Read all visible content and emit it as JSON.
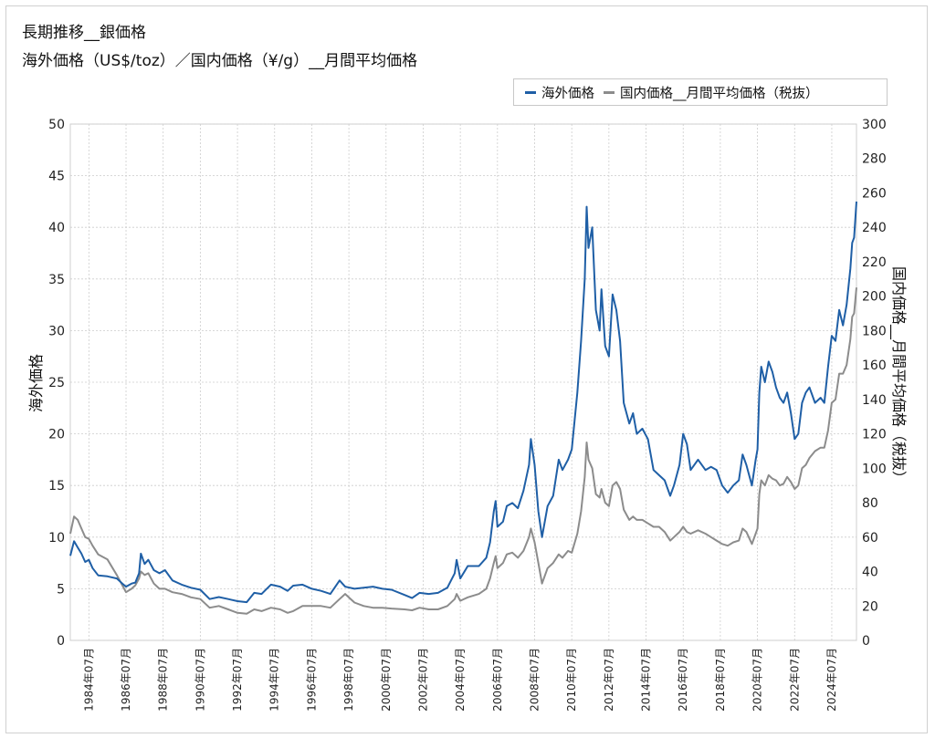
{
  "title_line1": "長期推移__銀価格",
  "title_line2": "海外価格（US$/toz）／国内価格（¥/g）__月間平均価格",
  "chart_data": {
    "type": "line",
    "title": "長期推移__銀価格",
    "subtitle": "海外価格（US$/toz）／国内価格（¥/g）__月間平均価格",
    "ylabel": "海外価格",
    "y2label": "国内価格__月間平均価格（税抜）",
    "ylim": [
      0,
      50
    ],
    "y2lim": [
      0,
      300
    ],
    "yticks": [
      "0",
      "5",
      "10",
      "15",
      "20",
      "25",
      "30",
      "35",
      "40",
      "45",
      "50"
    ],
    "y2ticks": [
      "0",
      "20",
      "40",
      "60",
      "80",
      "100",
      "120",
      "140",
      "160",
      "180",
      "200",
      "220",
      "240",
      "260",
      "280",
      "300"
    ],
    "x_range": [
      1983.5,
      2025.83
    ],
    "xtick_labels": [
      "1984年07月",
      "1986年07月",
      "1988年07月",
      "1990年07月",
      "1992年07月",
      "1994年07月",
      "1996年07月",
      "1998年07月",
      "2000年07月",
      "2002年07月",
      "2004年07月",
      "2006年07月",
      "2008年07月",
      "2010年07月",
      "2012年07月",
      "2014年07月",
      "2016年07月",
      "2018年07月",
      "2020年07月",
      "2022年07月",
      "2024年07月"
    ],
    "xtick_values": [
      1984.5,
      1986.5,
      1988.5,
      1990.5,
      1992.5,
      1994.5,
      1996.5,
      1998.5,
      2000.5,
      2002.5,
      2004.5,
      2006.5,
      2008.5,
      2010.5,
      2012.5,
      2014.5,
      2016.5,
      2018.5,
      2020.5,
      2022.5,
      2024.5
    ],
    "grid": true,
    "legend_position": "top-right",
    "series": [
      {
        "name": "海外価格",
        "axis": "left",
        "color": "#1f5fa6",
        "points": [
          [
            1983.5,
            8.2
          ],
          [
            1983.7,
            9.6
          ],
          [
            1983.9,
            9.0
          ],
          [
            1984.1,
            8.4
          ],
          [
            1984.3,
            7.6
          ],
          [
            1984.5,
            7.8
          ],
          [
            1984.7,
            7.0
          ],
          [
            1985.0,
            6.3
          ],
          [
            1985.5,
            6.2
          ],
          [
            1986.0,
            6.0
          ],
          [
            1986.3,
            5.5
          ],
          [
            1986.5,
            5.2
          ],
          [
            1986.8,
            5.5
          ],
          [
            1987.0,
            5.6
          ],
          [
            1987.2,
            6.5
          ],
          [
            1987.3,
            8.4
          ],
          [
            1987.5,
            7.4
          ],
          [
            1987.7,
            7.8
          ],
          [
            1988.0,
            6.8
          ],
          [
            1988.3,
            6.5
          ],
          [
            1988.6,
            6.8
          ],
          [
            1989.0,
            5.8
          ],
          [
            1989.5,
            5.4
          ],
          [
            1990.0,
            5.1
          ],
          [
            1990.5,
            4.9
          ],
          [
            1991.0,
            4.0
          ],
          [
            1991.5,
            4.2
          ],
          [
            1992.0,
            4.0
          ],
          [
            1992.5,
            3.8
          ],
          [
            1993.0,
            3.7
          ],
          [
            1993.4,
            4.6
          ],
          [
            1993.8,
            4.5
          ],
          [
            1994.3,
            5.4
          ],
          [
            1994.8,
            5.2
          ],
          [
            1995.2,
            4.8
          ],
          [
            1995.5,
            5.3
          ],
          [
            1996.0,
            5.4
          ],
          [
            1996.5,
            5.0
          ],
          [
            1997.0,
            4.8
          ],
          [
            1997.5,
            4.5
          ],
          [
            1998.0,
            5.8
          ],
          [
            1998.3,
            5.2
          ],
          [
            1998.8,
            5.0
          ],
          [
            1999.3,
            5.1
          ],
          [
            1999.8,
            5.2
          ],
          [
            2000.3,
            5.0
          ],
          [
            2000.8,
            4.9
          ],
          [
            2001.5,
            4.4
          ],
          [
            2001.9,
            4.1
          ],
          [
            2002.3,
            4.6
          ],
          [
            2002.8,
            4.5
          ],
          [
            2003.3,
            4.6
          ],
          [
            2003.8,
            5.1
          ],
          [
            2004.2,
            6.5
          ],
          [
            2004.3,
            7.8
          ],
          [
            2004.5,
            6.0
          ],
          [
            2004.9,
            7.2
          ],
          [
            2005.5,
            7.2
          ],
          [
            2005.9,
            8.0
          ],
          [
            2006.1,
            9.5
          ],
          [
            2006.3,
            12.5
          ],
          [
            2006.4,
            13.5
          ],
          [
            2006.5,
            11.0
          ],
          [
            2006.8,
            11.5
          ],
          [
            2007.0,
            13.0
          ],
          [
            2007.3,
            13.3
          ],
          [
            2007.6,
            12.8
          ],
          [
            2007.9,
            14.5
          ],
          [
            2008.2,
            17.0
          ],
          [
            2008.3,
            19.5
          ],
          [
            2008.5,
            17.0
          ],
          [
            2008.7,
            12.5
          ],
          [
            2008.9,
            10.0
          ],
          [
            2009.2,
            13.0
          ],
          [
            2009.5,
            14.0
          ],
          [
            2009.8,
            17.5
          ],
          [
            2010.0,
            16.5
          ],
          [
            2010.3,
            17.5
          ],
          [
            2010.5,
            18.5
          ],
          [
            2010.8,
            24.0
          ],
          [
            2011.0,
            29.0
          ],
          [
            2011.2,
            35.0
          ],
          [
            2011.3,
            42.0
          ],
          [
            2011.4,
            38.0
          ],
          [
            2011.6,
            40.0
          ],
          [
            2011.8,
            32.0
          ],
          [
            2012.0,
            30.0
          ],
          [
            2012.1,
            34.0
          ],
          [
            2012.3,
            28.5
          ],
          [
            2012.5,
            27.5
          ],
          [
            2012.7,
            33.5
          ],
          [
            2012.9,
            32.0
          ],
          [
            2013.1,
            29.0
          ],
          [
            2013.3,
            23.0
          ],
          [
            2013.6,
            21.0
          ],
          [
            2013.8,
            22.0
          ],
          [
            2014.0,
            20.0
          ],
          [
            2014.3,
            20.5
          ],
          [
            2014.6,
            19.5
          ],
          [
            2014.9,
            16.5
          ],
          [
            2015.2,
            16.0
          ],
          [
            2015.5,
            15.5
          ],
          [
            2015.8,
            14.0
          ],
          [
            2016.0,
            15.0
          ],
          [
            2016.3,
            17.0
          ],
          [
            2016.5,
            20.0
          ],
          [
            2016.7,
            19.0
          ],
          [
            2016.9,
            16.5
          ],
          [
            2017.3,
            17.5
          ],
          [
            2017.7,
            16.5
          ],
          [
            2018.0,
            16.8
          ],
          [
            2018.3,
            16.5
          ],
          [
            2018.6,
            15.0
          ],
          [
            2018.9,
            14.3
          ],
          [
            2019.2,
            15.0
          ],
          [
            2019.5,
            15.5
          ],
          [
            2019.7,
            18.0
          ],
          [
            2019.9,
            17.0
          ],
          [
            2020.2,
            15.0
          ],
          [
            2020.4,
            17.5
          ],
          [
            2020.5,
            18.5
          ],
          [
            2020.6,
            24.0
          ],
          [
            2020.7,
            26.5
          ],
          [
            2020.9,
            25.0
          ],
          [
            2021.1,
            27.0
          ],
          [
            2021.3,
            26.0
          ],
          [
            2021.5,
            24.5
          ],
          [
            2021.7,
            23.5
          ],
          [
            2021.9,
            23.0
          ],
          [
            2022.1,
            24.0
          ],
          [
            2022.3,
            22.0
          ],
          [
            2022.5,
            19.5
          ],
          [
            2022.7,
            20.0
          ],
          [
            2022.9,
            23.0
          ],
          [
            2023.1,
            24.0
          ],
          [
            2023.3,
            24.5
          ],
          [
            2023.6,
            23.0
          ],
          [
            2023.9,
            23.5
          ],
          [
            2024.1,
            23.0
          ],
          [
            2024.3,
            26.5
          ],
          [
            2024.5,
            29.5
          ],
          [
            2024.7,
            29.0
          ],
          [
            2024.9,
            32.0
          ],
          [
            2025.1,
            30.5
          ],
          [
            2025.3,
            32.5
          ],
          [
            2025.5,
            36.0
          ],
          [
            2025.6,
            38.5
          ],
          [
            2025.7,
            39.0
          ],
          [
            2025.83,
            42.5
          ]
        ]
      },
      {
        "name": "国内価格__月間平均価格（税抜）",
        "axis": "right",
        "color": "#8c8c8c",
        "points": [
          [
            1983.5,
            62
          ],
          [
            1983.7,
            72
          ],
          [
            1983.9,
            70
          ],
          [
            1984.1,
            65
          ],
          [
            1984.3,
            60
          ],
          [
            1984.5,
            59
          ],
          [
            1984.7,
            55
          ],
          [
            1985.0,
            50
          ],
          [
            1985.5,
            47
          ],
          [
            1986.0,
            38
          ],
          [
            1986.3,
            32
          ],
          [
            1986.5,
            28
          ],
          [
            1986.8,
            30
          ],
          [
            1987.0,
            32
          ],
          [
            1987.2,
            36
          ],
          [
            1987.3,
            40
          ],
          [
            1987.5,
            38
          ],
          [
            1987.7,
            39
          ],
          [
            1988.0,
            33
          ],
          [
            1988.3,
            30
          ],
          [
            1988.6,
            30
          ],
          [
            1989.0,
            28
          ],
          [
            1989.5,
            27
          ],
          [
            1990.0,
            25
          ],
          [
            1990.5,
            24
          ],
          [
            1991.0,
            19
          ],
          [
            1991.5,
            20
          ],
          [
            1992.0,
            18
          ],
          [
            1992.5,
            16
          ],
          [
            1993.0,
            15.5
          ],
          [
            1993.4,
            18
          ],
          [
            1993.8,
            17
          ],
          [
            1994.3,
            19
          ],
          [
            1994.8,
            18
          ],
          [
            1995.2,
            16
          ],
          [
            1995.5,
            17
          ],
          [
            1996.0,
            20
          ],
          [
            1996.5,
            20
          ],
          [
            1997.0,
            20
          ],
          [
            1997.5,
            19
          ],
          [
            1998.0,
            24
          ],
          [
            1998.3,
            27
          ],
          [
            1998.8,
            22
          ],
          [
            1999.3,
            20
          ],
          [
            1999.8,
            19
          ],
          [
            2000.3,
            19
          ],
          [
            2000.8,
            18.5
          ],
          [
            2001.5,
            18
          ],
          [
            2001.9,
            17.5
          ],
          [
            2002.3,
            19
          ],
          [
            2002.8,
            18
          ],
          [
            2003.3,
            18
          ],
          [
            2003.8,
            20
          ],
          [
            2004.2,
            24
          ],
          [
            2004.3,
            27
          ],
          [
            2004.5,
            23
          ],
          [
            2004.9,
            25
          ],
          [
            2005.5,
            27
          ],
          [
            2005.9,
            30
          ],
          [
            2006.1,
            36
          ],
          [
            2006.3,
            45
          ],
          [
            2006.4,
            49
          ],
          [
            2006.5,
            42
          ],
          [
            2006.8,
            45
          ],
          [
            2007.0,
            50
          ],
          [
            2007.3,
            51
          ],
          [
            2007.6,
            48
          ],
          [
            2007.9,
            52
          ],
          [
            2008.2,
            60
          ],
          [
            2008.3,
            65
          ],
          [
            2008.5,
            57
          ],
          [
            2008.7,
            45
          ],
          [
            2008.9,
            33
          ],
          [
            2009.2,
            42
          ],
          [
            2009.5,
            45
          ],
          [
            2009.8,
            50
          ],
          [
            2010.0,
            48
          ],
          [
            2010.3,
            52
          ],
          [
            2010.5,
            51
          ],
          [
            2010.8,
            62
          ],
          [
            2011.0,
            75
          ],
          [
            2011.2,
            95
          ],
          [
            2011.3,
            115
          ],
          [
            2011.4,
            105
          ],
          [
            2011.6,
            100
          ],
          [
            2011.8,
            85
          ],
          [
            2012.0,
            83
          ],
          [
            2012.1,
            88
          ],
          [
            2012.3,
            80
          ],
          [
            2012.5,
            78
          ],
          [
            2012.7,
            90
          ],
          [
            2012.9,
            92
          ],
          [
            2013.1,
            88
          ],
          [
            2013.3,
            76
          ],
          [
            2013.6,
            70
          ],
          [
            2013.8,
            72
          ],
          [
            2014.0,
            70
          ],
          [
            2014.3,
            70
          ],
          [
            2014.6,
            68
          ],
          [
            2014.9,
            66
          ],
          [
            2015.2,
            66
          ],
          [
            2015.5,
            63
          ],
          [
            2015.8,
            58
          ],
          [
            2016.0,
            60
          ],
          [
            2016.3,
            63
          ],
          [
            2016.5,
            66
          ],
          [
            2016.7,
            63
          ],
          [
            2016.9,
            62
          ],
          [
            2017.3,
            64
          ],
          [
            2017.7,
            62
          ],
          [
            2018.0,
            60
          ],
          [
            2018.3,
            58
          ],
          [
            2018.6,
            56
          ],
          [
            2018.9,
            55
          ],
          [
            2019.2,
            57
          ],
          [
            2019.5,
            58
          ],
          [
            2019.7,
            65
          ],
          [
            2019.9,
            63
          ],
          [
            2020.2,
            56
          ],
          [
            2020.4,
            62
          ],
          [
            2020.5,
            65
          ],
          [
            2020.6,
            85
          ],
          [
            2020.7,
            93
          ],
          [
            2020.9,
            90
          ],
          [
            2021.1,
            96
          ],
          [
            2021.3,
            94
          ],
          [
            2021.5,
            93
          ],
          [
            2021.7,
            90
          ],
          [
            2021.9,
            91
          ],
          [
            2022.1,
            95
          ],
          [
            2022.3,
            92
          ],
          [
            2022.5,
            88
          ],
          [
            2022.7,
            90
          ],
          [
            2022.9,
            100
          ],
          [
            2023.1,
            102
          ],
          [
            2023.3,
            106
          ],
          [
            2023.6,
            110
          ],
          [
            2023.9,
            112
          ],
          [
            2024.1,
            112
          ],
          [
            2024.3,
            122
          ],
          [
            2024.5,
            138
          ],
          [
            2024.7,
            140
          ],
          [
            2024.9,
            155
          ],
          [
            2025.1,
            155
          ],
          [
            2025.3,
            160
          ],
          [
            2025.5,
            175
          ],
          [
            2025.6,
            188
          ],
          [
            2025.7,
            190
          ],
          [
            2025.83,
            205
          ]
        ]
      }
    ]
  }
}
